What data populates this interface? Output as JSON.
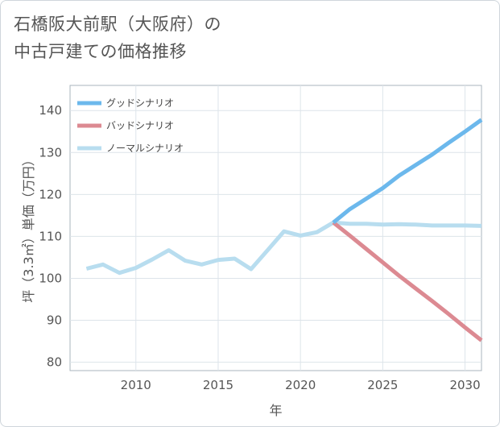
{
  "title": {
    "line1": "石橋阪大前駅（大阪府）の",
    "line2": "中古戸建ての価格推移"
  },
  "chart_data": {
    "type": "line",
    "xlabel": "年",
    "ylabel": "坪（3.3㎡）単価（万円）",
    "xlim": [
      2006,
      2031
    ],
    "ylim": [
      78,
      146
    ],
    "xticks": [
      2010,
      2015,
      2020,
      2025,
      2030
    ],
    "yticks": [
      80,
      90,
      100,
      110,
      120,
      130,
      140
    ],
    "legend_position": "top-left",
    "grid": true,
    "series": [
      {
        "name": "グッドシナリオ",
        "color": "#6cb8ec",
        "x": [
          2022,
          2023,
          2024,
          2025,
          2026,
          2027,
          2028,
          2029,
          2030,
          2031
        ],
        "y": [
          113.3,
          116.5,
          119.0,
          121.5,
          124.5,
          127.0,
          129.5,
          132.3,
          135.0,
          137.8
        ]
      },
      {
        "name": "バッドシナリオ",
        "color": "#dc8a92",
        "x": [
          2022,
          2023,
          2024,
          2025,
          2026,
          2027,
          2028,
          2029,
          2030,
          2031
        ],
        "y": [
          113.3,
          110.2,
          107.0,
          103.8,
          100.6,
          97.6,
          94.6,
          91.5,
          88.3,
          85.2
        ]
      },
      {
        "name": "ノーマルシナリオ",
        "color": "#b8ddef",
        "x": [
          2007,
          2008,
          2009,
          2010,
          2011,
          2012,
          2013,
          2014,
          2015,
          2016,
          2017,
          2018,
          2019,
          2020,
          2021,
          2022,
          2023,
          2024,
          2025,
          2026,
          2027,
          2028,
          2029,
          2030,
          2031
        ],
        "y": [
          102.3,
          103.3,
          101.3,
          102.5,
          104.5,
          106.7,
          104.2,
          103.3,
          104.4,
          104.7,
          102.2,
          106.7,
          111.2,
          110.2,
          111.0,
          113.3,
          113.0,
          113.0,
          112.8,
          112.9,
          112.8,
          112.6,
          112.6,
          112.6,
          112.5
        ]
      }
    ]
  }
}
